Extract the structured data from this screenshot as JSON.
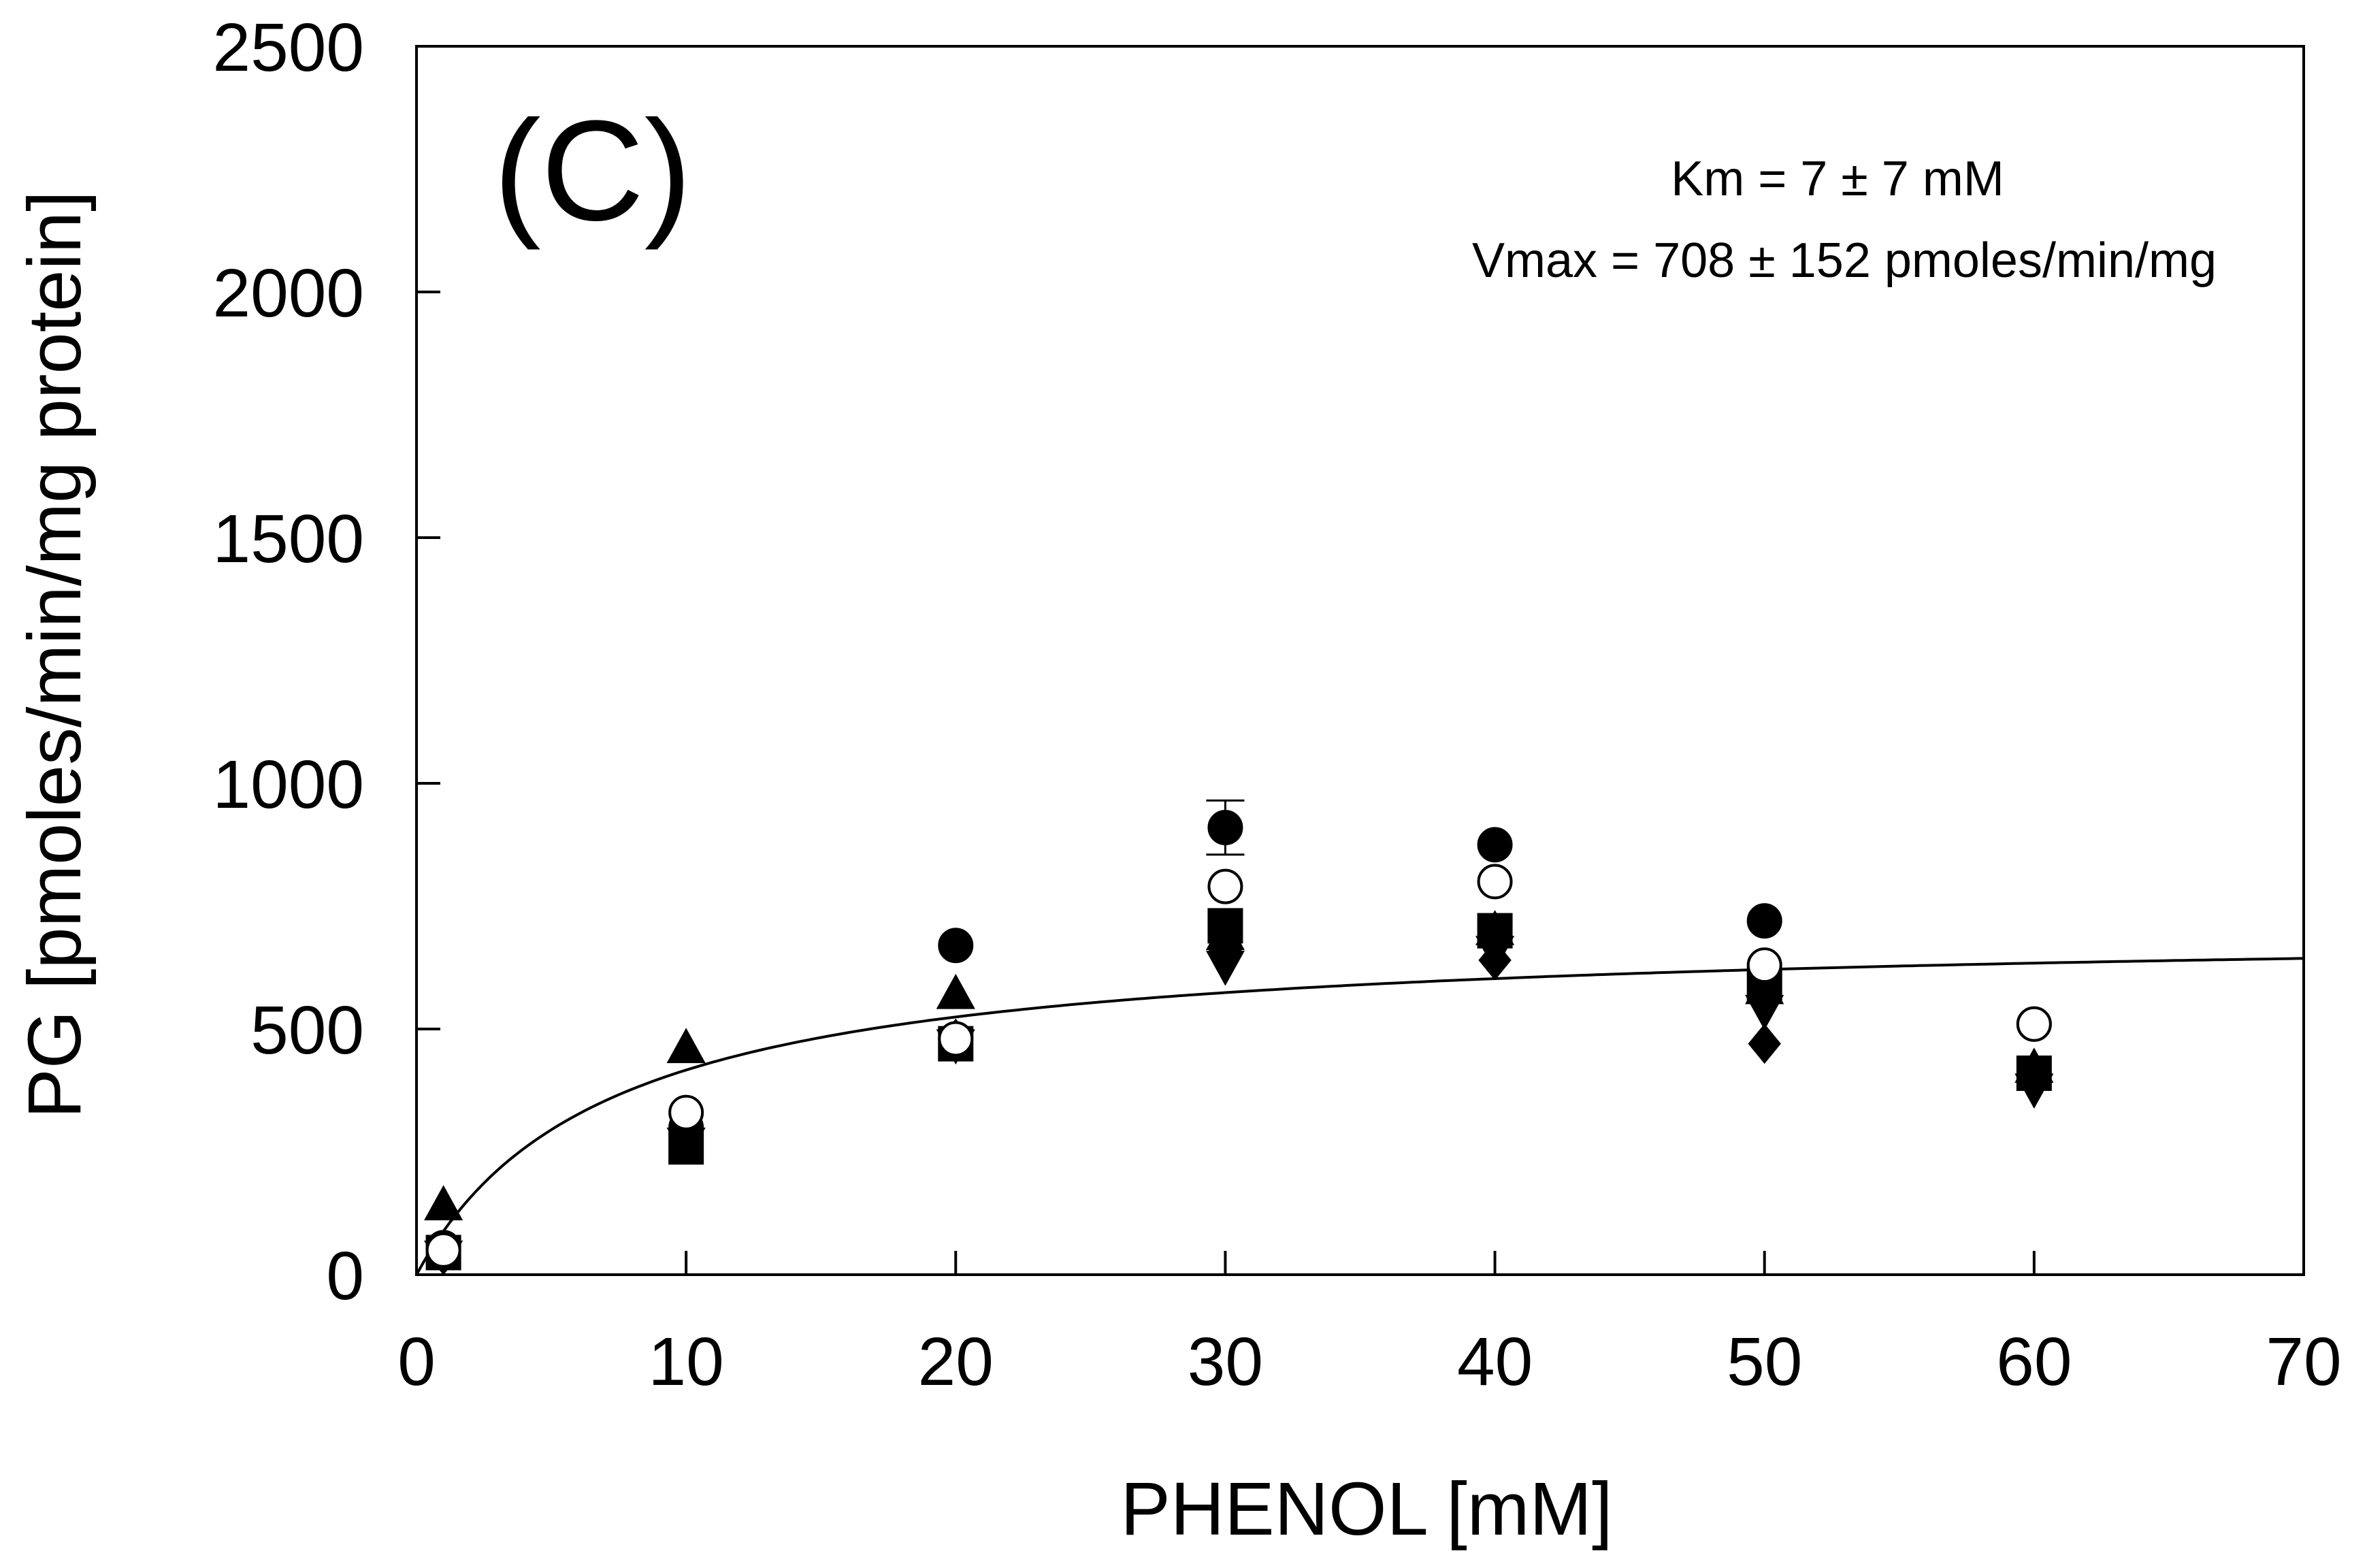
{
  "chart_data": {
    "type": "scatter",
    "panel_label": "(C)",
    "title": "",
    "xlabel": "PHENOL [mM]",
    "ylabel": "PG [pmoles/min/mg protein]",
    "xlim": [
      0,
      70
    ],
    "ylim": [
      0,
      2500
    ],
    "xticks": [
      0,
      10,
      20,
      30,
      40,
      50,
      60,
      70
    ],
    "yticks": [
      0,
      500,
      1000,
      1500,
      2000,
      2500
    ],
    "grid": false,
    "annotations": [
      "Km = 7 ± 7 mM",
      "Vmax = 708 ± 152 pmoles/min/mg"
    ],
    "fit": {
      "model": "Michaelis-Menten",
      "Km": 7,
      "Vmax": 708
    },
    "series": [
      {
        "name": "filled-circle",
        "marker": "circle",
        "filled": true,
        "x": [
          1,
          10,
          20,
          30,
          40,
          50,
          60
        ],
        "y": [
          55,
          300,
          670,
          910,
          875,
          720,
          510
        ],
        "yerr": [
          0,
          0,
          0,
          55,
          0,
          0,
          0
        ]
      },
      {
        "name": "open-circle",
        "marker": "circle",
        "filled": false,
        "x": [
          1,
          10,
          20,
          30,
          40,
          50,
          60
        ],
        "y": [
          50,
          330,
          480,
          790,
          800,
          630,
          510
        ]
      },
      {
        "name": "filled-triangle",
        "marker": "triangle-up",
        "filled": true,
        "x": [
          1,
          10,
          20,
          30,
          40,
          50,
          60
        ],
        "y": [
          140,
          460,
          570,
          690,
          700,
          580,
          420
        ]
      },
      {
        "name": "filled-square",
        "marker": "square",
        "filled": true,
        "x": [
          1,
          10,
          20,
          30,
          40,
          50,
          60
        ],
        "y": [
          45,
          260,
          470,
          710,
          700,
          590,
          410
        ]
      },
      {
        "name": "filled-triangle-down",
        "marker": "triangle-down",
        "filled": true,
        "x": [
          1,
          10,
          20,
          30,
          40,
          50,
          60
        ],
        "y": [
          40,
          270,
          470,
          630,
          660,
          540,
          380
        ]
      },
      {
        "name": "filled-diamond",
        "marker": "diamond",
        "filled": true,
        "x": [
          1,
          10,
          20,
          30,
          40,
          50,
          60
        ],
        "y": [
          40,
          280,
          480,
          660,
          640,
          470,
          400
        ]
      }
    ]
  }
}
